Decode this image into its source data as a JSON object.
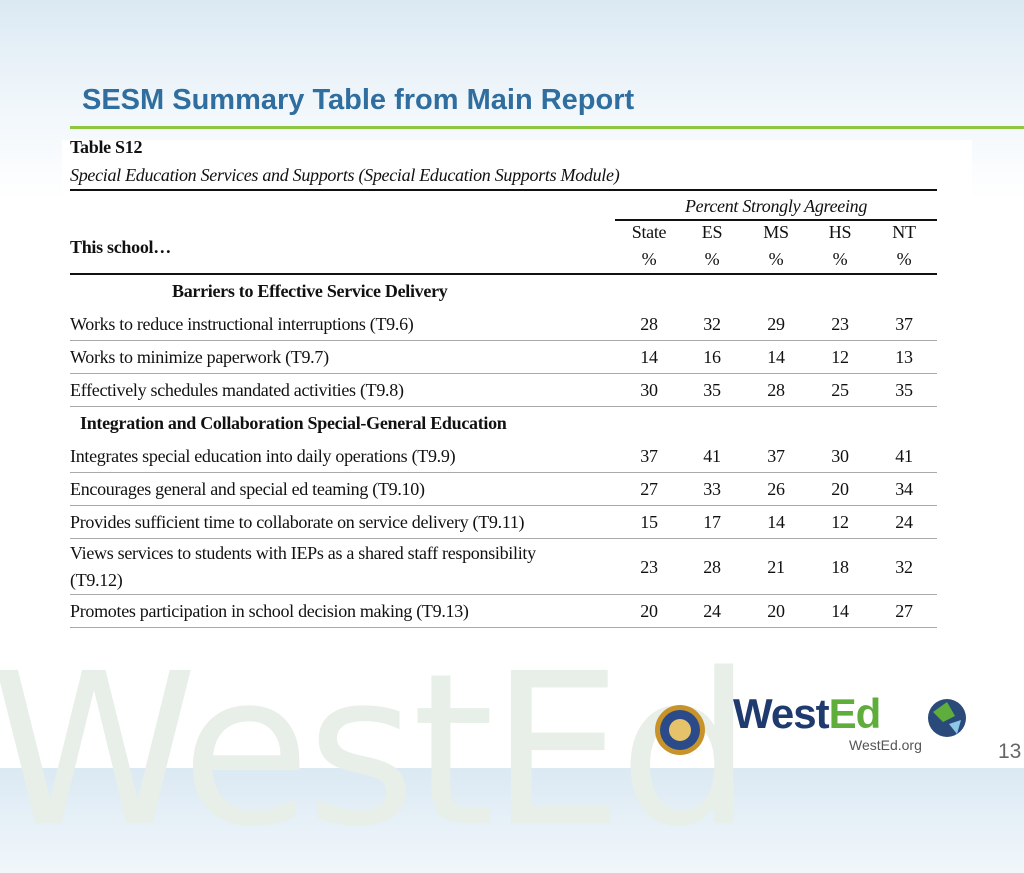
{
  "slide": {
    "title": "SESM Summary Table from Main Report",
    "watermark": "WestEd",
    "logo_a": "West",
    "logo_b": "Ed",
    "url": "WestEd.org",
    "page": "13"
  },
  "table": {
    "caption": "Table S12",
    "subtitle": "Special Education Services and Supports (Special Education Supports Module)",
    "group_header": "Percent Strongly Agreeing",
    "row_header": "This school…",
    "columns": [
      [
        "State",
        "%"
      ],
      [
        "ES",
        "%"
      ],
      [
        "MS",
        "%"
      ],
      [
        "HS",
        "%"
      ],
      [
        "NT",
        "%"
      ]
    ],
    "sections": [
      {
        "title": "Barriers to Effective Service Delivery",
        "rows": [
          {
            "label": "Works to reduce instructional interruptions (T9.6)",
            "values": [
              28,
              32,
              29,
              23,
              37
            ]
          },
          {
            "label": "Works to minimize paperwork (T9.7)",
            "values": [
              14,
              16,
              14,
              12,
              13
            ]
          },
          {
            "label": "Effectively schedules mandated activities (T9.8)",
            "values": [
              30,
              35,
              28,
              25,
              35
            ]
          }
        ]
      },
      {
        "title": "Integration and Collaboration Special-General Education",
        "rows": [
          {
            "label": "Integrates special education into daily operations (T9.9)",
            "values": [
              37,
              41,
              37,
              30,
              41
            ]
          },
          {
            "label": "Encourages general and special ed teaming (T9.10)",
            "values": [
              27,
              33,
              26,
              20,
              34
            ]
          },
          {
            "label": "Provides sufficient time to collaborate on service delivery (T9.11)",
            "values": [
              15,
              17,
              14,
              12,
              24
            ]
          },
          {
            "label": "Views services to students with IEPs as a shared staff responsibility (T9.12)",
            "values": [
              23,
              28,
              21,
              18,
              32
            ]
          },
          {
            "label": "Promotes participation in school decision making (T9.13)",
            "values": [
              20,
              24,
              20,
              14,
              27
            ]
          }
        ]
      }
    ]
  }
}
